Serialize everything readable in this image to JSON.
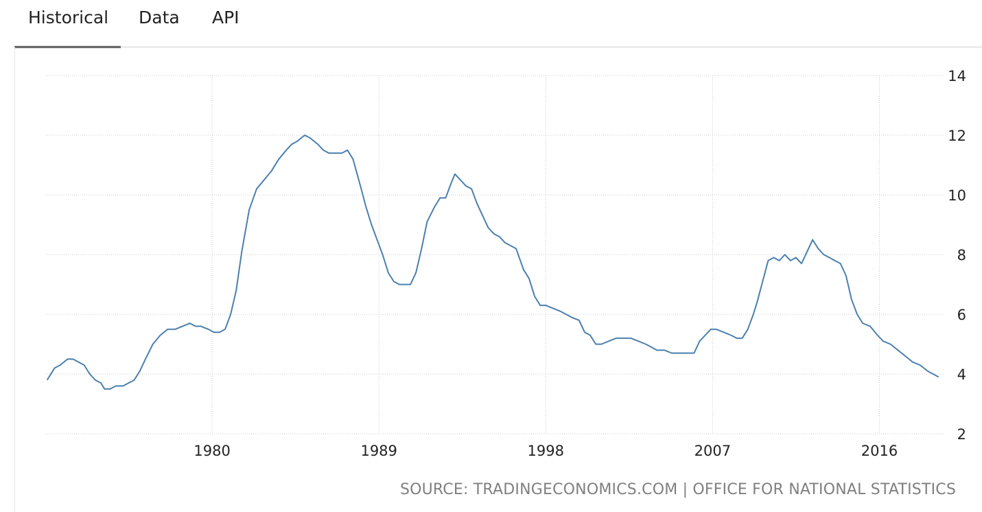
{
  "tabs": [
    {
      "label": "Historical",
      "active": true
    },
    {
      "label": "Data",
      "active": false
    },
    {
      "label": "API",
      "active": false
    }
  ],
  "source": "SOURCE: TRADINGECONOMICS.COM | OFFICE FOR NATIONAL STATISTICS",
  "colors": {
    "line": "#4a7fae",
    "grid": "#c8c8c8",
    "axis_text": "#222222",
    "source_text": "#7f7f7f"
  },
  "chart_data": {
    "type": "line",
    "title": "",
    "xlabel": "",
    "ylabel": "",
    "xlim": [
      1971.0,
      2019.5
    ],
    "ylim": [
      2,
      14
    ],
    "y_ticks": [
      2,
      4,
      6,
      8,
      10,
      12,
      14
    ],
    "x_ticks": [
      1980,
      1989,
      1998,
      2007,
      2016
    ],
    "y_tick_labels": [
      "2",
      "4",
      "6",
      "8",
      "10",
      "12",
      "14"
    ],
    "x_tick_labels": [
      "1980",
      "1989",
      "1998",
      "2007",
      "2016"
    ],
    "grid": true,
    "y_axis_position": "right",
    "series": [
      {
        "x": [
          1971.1,
          1971.5,
          1971.8,
          1972.2,
          1972.5,
          1972.8,
          1973.1,
          1973.4,
          1973.7,
          1974.0,
          1974.2,
          1974.5,
          1974.8,
          1975.2,
          1975.5,
          1975.8,
          1976.1,
          1976.4,
          1976.8,
          1977.2,
          1977.6,
          1978.0,
          1978.4,
          1978.8,
          1979.1,
          1979.4,
          1979.8,
          1980.1,
          1980.4,
          1980.7,
          1981.0,
          1981.3,
          1981.6,
          1982.0,
          1982.4,
          1982.8,
          1983.2,
          1983.6,
          1984.0,
          1984.3,
          1984.6,
          1985.0,
          1985.3,
          1985.7,
          1986.0,
          1986.3,
          1986.6,
          1987.0,
          1987.3,
          1987.6,
          1988.0,
          1988.3,
          1988.6,
          1988.9,
          1989.2,
          1989.5,
          1989.8,
          1990.1,
          1990.4,
          1990.7,
          1991.0,
          1991.3,
          1991.6,
          1992.0,
          1992.3,
          1992.6,
          1992.9,
          1993.1,
          1993.4,
          1993.7,
          1994.0,
          1994.3,
          1994.6,
          1994.9,
          1995.2,
          1995.5,
          1995.8,
          1996.1,
          1996.4,
          1996.8,
          1997.1,
          1997.4,
          1997.7,
          1998.0,
          1998.4,
          1998.8,
          1999.1,
          1999.4,
          1999.8,
          2000.1,
          2000.4,
          2000.7,
          2001.0,
          2001.4,
          2001.8,
          2002.2,
          2002.6,
          2003.0,
          2003.4,
          2003.7,
          2004.0,
          2004.4,
          2004.8,
          2005.2,
          2005.6,
          2006.0,
          2006.3,
          2006.6,
          2006.9,
          2007.2,
          2007.6,
          2008.0,
          2008.3,
          2008.6,
          2008.9,
          2009.2,
          2009.4,
          2009.7,
          2010.0,
          2010.3,
          2010.6,
          2010.9,
          2011.2,
          2011.5,
          2011.8,
          2012.1,
          2012.4,
          2012.7,
          2013.0,
          2013.3,
          2013.6,
          2013.9,
          2014.2,
          2014.5,
          2014.8,
          2015.1,
          2015.5,
          2015.9,
          2016.2,
          2016.6,
          2017.0,
          2017.4,
          2017.8,
          2018.2,
          2018.6,
          2018.9,
          2019.2
        ],
        "y": [
          3.8,
          4.2,
          4.3,
          4.5,
          4.5,
          4.4,
          4.3,
          4.0,
          3.8,
          3.7,
          3.5,
          3.5,
          3.6,
          3.6,
          3.7,
          3.8,
          4.1,
          4.5,
          5.0,
          5.3,
          5.5,
          5.5,
          5.6,
          5.7,
          5.6,
          5.6,
          5.5,
          5.4,
          5.4,
          5.5,
          6.0,
          6.8,
          8.1,
          9.5,
          10.2,
          10.5,
          10.8,
          11.2,
          11.5,
          11.7,
          11.8,
          12.0,
          11.9,
          11.7,
          11.5,
          11.4,
          11.4,
          11.4,
          11.5,
          11.2,
          10.3,
          9.6,
          9.0,
          8.5,
          8.0,
          7.4,
          7.1,
          7.0,
          7.0,
          7.0,
          7.4,
          8.2,
          9.1,
          9.6,
          9.9,
          9.9,
          10.4,
          10.7,
          10.5,
          10.3,
          10.2,
          9.7,
          9.3,
          8.9,
          8.7,
          8.6,
          8.4,
          8.3,
          8.2,
          7.5,
          7.2,
          6.6,
          6.3,
          6.3,
          6.2,
          6.1,
          6.0,
          5.9,
          5.8,
          5.4,
          5.3,
          5.0,
          5.0,
          5.1,
          5.2,
          5.2,
          5.2,
          5.1,
          5.0,
          4.9,
          4.8,
          4.8,
          4.7,
          4.7,
          4.7,
          4.7,
          5.1,
          5.3,
          5.5,
          5.5,
          5.4,
          5.3,
          5.2,
          5.2,
          5.5,
          6.0,
          6.4,
          7.1,
          7.8,
          7.9,
          7.8,
          8.0,
          7.8,
          7.9,
          7.7,
          8.1,
          8.5,
          8.2,
          8.0,
          7.9,
          7.8,
          7.7,
          7.3,
          6.5,
          6.0,
          5.7,
          5.6,
          5.3,
          5.1,
          5.0,
          4.8,
          4.6,
          4.4,
          4.3,
          4.1,
          4.0,
          3.9
        ]
      }
    ]
  }
}
